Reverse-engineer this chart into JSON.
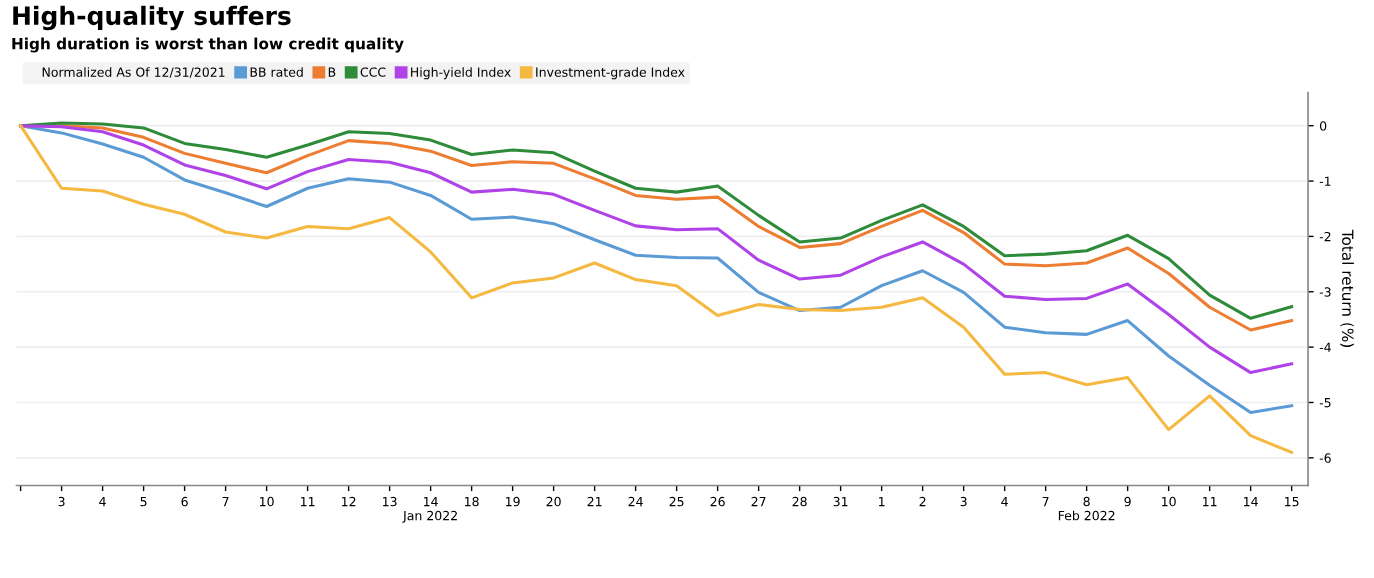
{
  "chart_data": {
    "type": "line",
    "title": "High-quality suffers",
    "subtitle": "High duration is worst than low credit quality",
    "ylabel": "Total return (%)",
    "legend_title": "Normalized As Of 12/31/2021",
    "categories": [
      null,
      "3",
      "4",
      "5",
      "6",
      "7",
      "10",
      "11",
      "12",
      "13",
      "14\nJan 2022",
      "18",
      "19",
      "20",
      "21",
      "24",
      "25",
      "26",
      "27",
      "28",
      "31",
      "1",
      "2",
      "3",
      "4",
      "7",
      "8\nFeb 2022",
      "9",
      "10",
      "11",
      "14",
      "15"
    ],
    "series": [
      {
        "name": "BB rated",
        "color": "#5b9bd5",
        "values": [
          0,
          -0.13,
          -0.33,
          -0.57,
          -0.98,
          -1.21,
          -1.46,
          -1.13,
          -0.96,
          -1.02,
          -1.26,
          -1.69,
          -1.65,
          -1.77,
          -2.06,
          -2.34,
          -2.38,
          -2.39,
          -3.01,
          -3.34,
          -3.28,
          -2.89,
          -2.62,
          -3.01,
          -3.64,
          -3.74,
          -3.77,
          -3.52,
          -4.16,
          -4.69,
          -5.18,
          -5.06
        ]
      },
      {
        "name": "B",
        "color": "#ed7d31",
        "values": [
          0,
          0.0,
          -0.04,
          -0.21,
          -0.5,
          -0.68,
          -0.85,
          -0.54,
          -0.27,
          -0.32,
          -0.46,
          -0.72,
          -0.65,
          -0.68,
          -0.96,
          -1.26,
          -1.33,
          -1.29,
          -1.82,
          -2.2,
          -2.13,
          -1.82,
          -1.53,
          -1.93,
          -2.5,
          -2.53,
          -2.48,
          -2.21,
          -2.67,
          -3.28,
          -3.69,
          -3.52
        ]
      },
      {
        "name": "CCC",
        "color": "#2e8b3a",
        "values": [
          0,
          0.05,
          0.03,
          -0.04,
          -0.32,
          -0.43,
          -0.57,
          -0.35,
          -0.11,
          -0.14,
          -0.26,
          -0.52,
          -0.44,
          -0.49,
          -0.82,
          -1.13,
          -1.2,
          -1.09,
          -1.62,
          -2.1,
          -2.03,
          -1.71,
          -1.43,
          -1.82,
          -2.35,
          -2.32,
          -2.26,
          -1.98,
          -2.4,
          -3.06,
          -3.48,
          -3.27
        ]
      },
      {
        "name": "High-yield Index",
        "color": "#b043e8",
        "values": [
          0,
          -0.02,
          -0.11,
          -0.35,
          -0.71,
          -0.9,
          -1.14,
          -0.83,
          -0.61,
          -0.66,
          -0.85,
          -1.2,
          -1.15,
          -1.24,
          -1.53,
          -1.81,
          -1.88,
          -1.86,
          -2.43,
          -2.77,
          -2.7,
          -2.37,
          -2.1,
          -2.5,
          -3.08,
          -3.14,
          -3.12,
          -2.86,
          -3.41,
          -4.0,
          -4.46,
          -4.3
        ]
      },
      {
        "name": "Investment-grade Index",
        "color": "#f5b841",
        "values": [
          0,
          -1.13,
          -1.18,
          -1.42,
          -1.6,
          -1.92,
          -2.03,
          -1.82,
          -1.86,
          -1.66,
          -2.28,
          -3.11,
          -2.84,
          -2.75,
          -2.48,
          -2.78,
          -2.89,
          -3.43,
          -3.23,
          -3.32,
          -3.34,
          -3.28,
          -3.11,
          -3.64,
          -4.49,
          -4.46,
          -4.68,
          -4.55,
          -5.49,
          -4.88,
          -5.6,
          -5.9
        ]
      }
    ],
    "ylim": [
      -6.5,
      0.6
    ],
    "yticks": [
      {
        "value": 0,
        "label": "0"
      },
      {
        "value": -1,
        "label": "-1"
      },
      {
        "value": -2,
        "label": "-2"
      },
      {
        "value": -3,
        "label": "-3"
      },
      {
        "value": -4,
        "label": "-4"
      },
      {
        "value": -5,
        "label": "-5"
      },
      {
        "value": -6,
        "label": "-6"
      }
    ],
    "grid": "y",
    "legend": "top left",
    "marker": "none",
    "line_style": "solid"
  }
}
